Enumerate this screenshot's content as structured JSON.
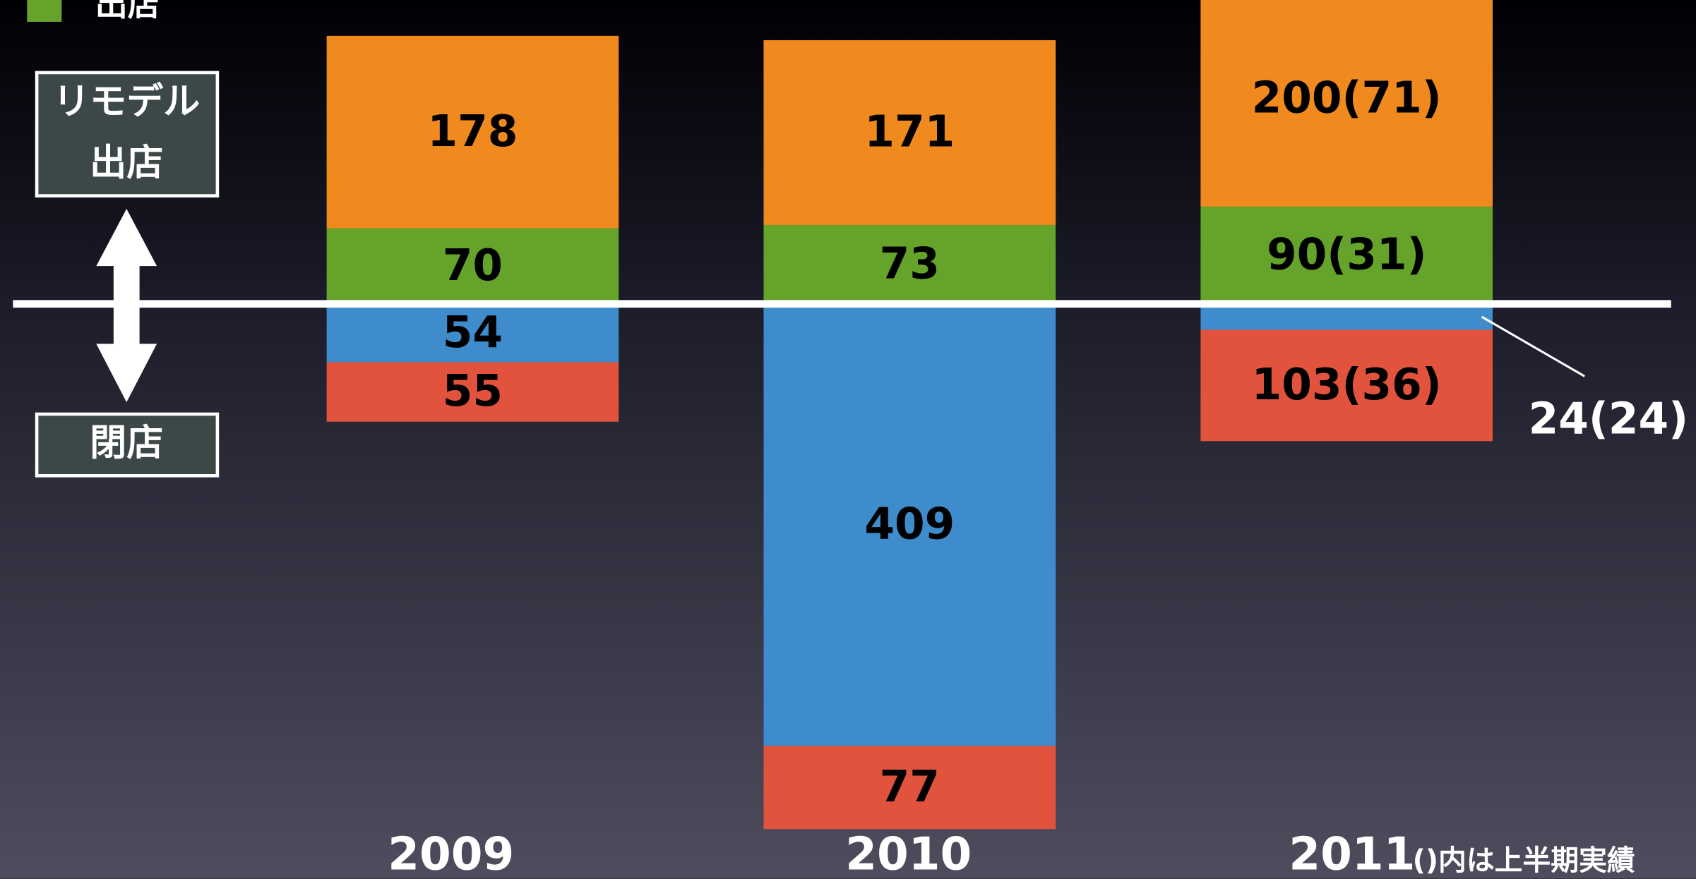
{
  "chart_data": {
    "type": "bar",
    "categories": [
      "2009",
      "2010",
      "2011"
    ],
    "series": [
      {
        "name": "出店",
        "color": "#65a32a",
        "values": [
          70,
          73,
          90
        ],
        "value_labels": [
          "70",
          "73",
          "90(31)"
        ]
      },
      {
        "color": "#f08a1e",
        "values": [
          178,
          171,
          200
        ],
        "value_labels": [
          "178",
          "171",
          "200(71)"
        ]
      },
      {
        "color": "#3e8ccc",
        "values": [
          -54,
          -409,
          -24
        ],
        "value_labels": [
          "54",
          "409",
          "24(24)"
        ]
      },
      {
        "color": "#e2533d",
        "values": [
          -55,
          -77,
          -103
        ],
        "value_labels": [
          "55",
          "77",
          "103(36)"
        ]
      }
    ],
    "ylim": [
      -532,
      281
    ],
    "stacked": true,
    "annotations": {
      "up_label": [
        "リモデル",
        "出店"
      ],
      "down_label": "閉店",
      "note": "()内は上半期実績"
    }
  }
}
